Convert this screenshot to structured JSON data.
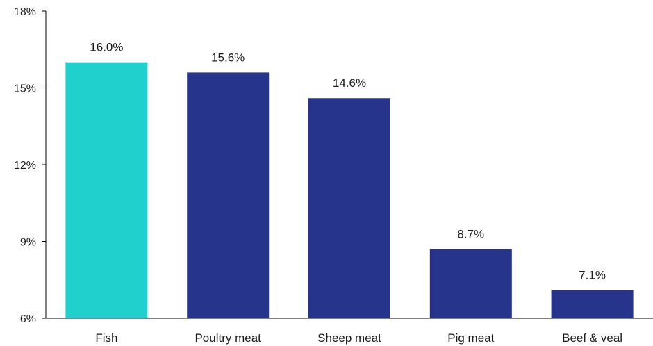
{
  "chart_data": {
    "type": "bar",
    "categories": [
      "Fish",
      "Poultry meat",
      "Sheep meat",
      "Pig meat",
      "Beef & veal"
    ],
    "values": [
      16.0,
      15.6,
      14.6,
      8.7,
      7.1
    ],
    "data_labels": [
      "16.0%",
      "15.6%",
      "14.6%",
      "8.7%",
      "7.1%"
    ],
    "title": "",
    "xlabel": "",
    "ylabel": "",
    "ylim": [
      6,
      18
    ],
    "yticks": [
      6,
      9,
      12,
      15,
      18
    ],
    "ytick_labels": [
      "6%",
      "9%",
      "12%",
      "15%",
      "18%"
    ],
    "grid": false,
    "colors": [
      "#1fd0cc",
      "#27348b",
      "#27348b",
      "#27348b",
      "#27348b"
    ],
    "axis_color": "#000000"
  }
}
